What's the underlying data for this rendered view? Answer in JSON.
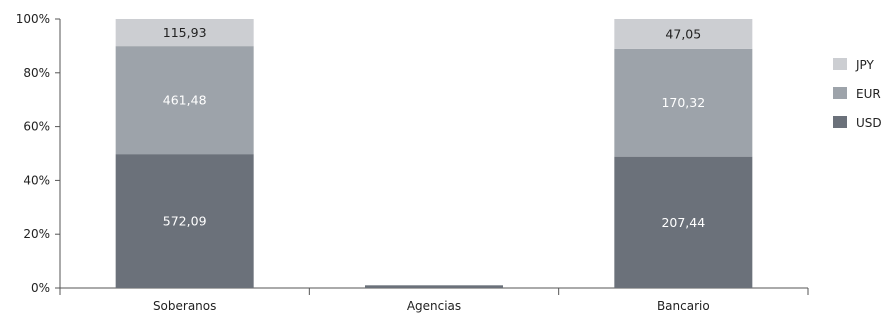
{
  "chart_data": {
    "type": "bar",
    "stacked": "percent",
    "categories": [
      "Soberanos",
      "Agencias",
      "Bancario"
    ],
    "series": [
      {
        "name": "USD",
        "values": [
          572.09,
          1.0,
          207.44
        ],
        "labels": [
          "572,09",
          "",
          "207,44"
        ],
        "color": "#6b717a",
        "label_color": "#ffffff"
      },
      {
        "name": "EUR",
        "values": [
          461.48,
          0,
          170.32
        ],
        "labels": [
          "461,48",
          "",
          "170,32"
        ],
        "color": "#9da3aa",
        "label_color": "#ffffff"
      },
      {
        "name": "JPY",
        "values": [
          115.93,
          0,
          47.05
        ],
        "labels": [
          "115,93",
          "",
          "47,05"
        ],
        "color": "#ccced2",
        "label_color": "#222222"
      }
    ],
    "agencias_visible_fraction": 0.01,
    "yticks": [
      "0%",
      "20%",
      "40%",
      "60%",
      "80%",
      "100%"
    ],
    "ylim": [
      0,
      100
    ],
    "legend": {
      "position": "right",
      "order": [
        "JPY",
        "EUR",
        "USD"
      ]
    },
    "grid": false
  }
}
